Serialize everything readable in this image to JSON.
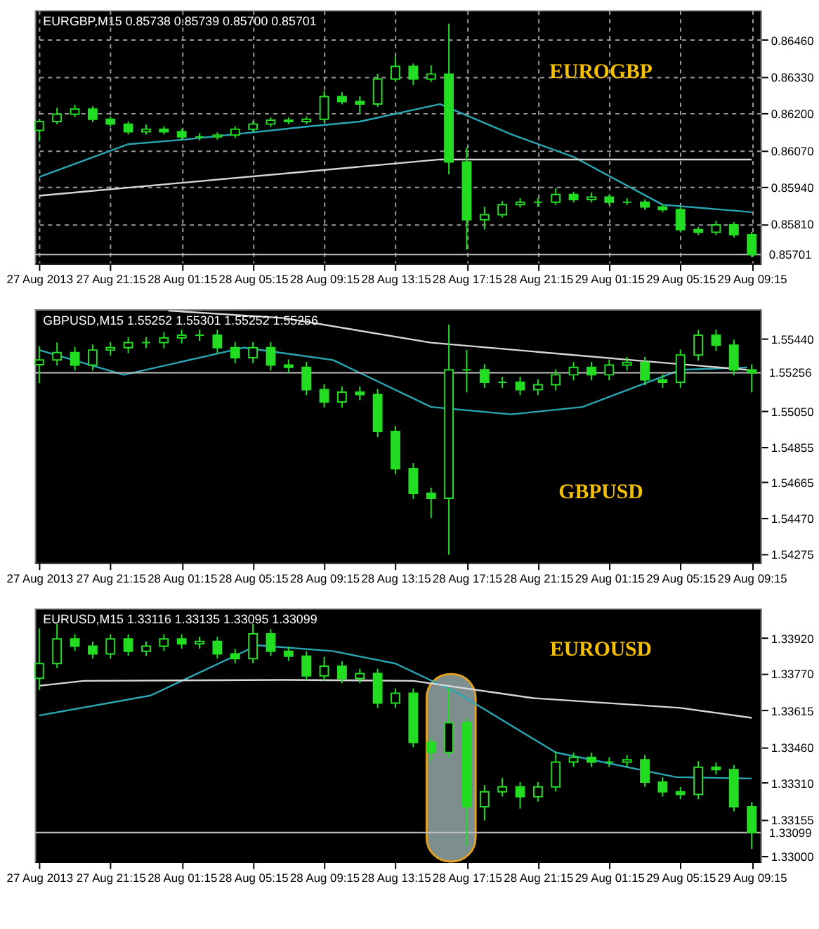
{
  "chart_data": [
    {
      "type": "candlestick",
      "title": "EURGBP,M15 0.85738 0.85739 0.85700 0.85701",
      "annotations": [
        "EUROGBP"
      ],
      "color": "#22dd22",
      "grid": true,
      "x": [
        "2013-08-27T17:15",
        "2013-08-27T18:15",
        "2013-08-27T19:15",
        "2013-08-27T20:15",
        "2013-08-27T21:15",
        "2013-08-27T22:15",
        "2013-08-27T23:15",
        "2013-08-28T00:15",
        "2013-08-28T01:15",
        "2013-08-28T02:15",
        "2013-08-28T03:15",
        "2013-08-28T04:15",
        "2013-08-28T05:15",
        "2013-08-28T06:15",
        "2013-08-28T07:15",
        "2013-08-28T08:15",
        "2013-08-28T09:15",
        "2013-08-28T10:15",
        "2013-08-28T11:15",
        "2013-08-28T12:15",
        "2013-08-28T13:15",
        "2013-08-28T14:15",
        "2013-08-28T15:15",
        "2013-08-28T16:15",
        "2013-08-28T17:15",
        "2013-08-28T18:15",
        "2013-08-28T19:15",
        "2013-08-28T20:15",
        "2013-08-28T21:15",
        "2013-08-28T22:15",
        "2013-08-28T23:15",
        "2013-08-29T00:15",
        "2013-08-29T01:15",
        "2013-08-29T02:15",
        "2013-08-29T03:15",
        "2013-08-29T04:15",
        "2013-08-29T05:15",
        "2013-08-29T06:15",
        "2013-08-29T07:15",
        "2013-08-29T08:15",
        "2013-08-29T09:15"
      ],
      "ohlc": [
        [
          0.8614,
          0.86181,
          0.861,
          0.86171
        ],
        [
          0.86171,
          0.8622,
          0.86161,
          0.86197
        ],
        [
          0.86197,
          0.8623,
          0.86187,
          0.86215
        ],
        [
          0.86215,
          0.86225,
          0.86169,
          0.86179
        ],
        [
          0.86179,
          0.86189,
          0.86152,
          0.86162
        ],
        [
          0.86162,
          0.86172,
          0.86125,
          0.86135
        ],
        [
          0.86135,
          0.8616,
          0.86125,
          0.86144
        ],
        [
          0.86144,
          0.86154,
          0.86125,
          0.86135
        ],
        [
          0.86135,
          0.86145,
          0.86107,
          0.86117
        ],
        [
          0.86117,
          0.8613,
          0.86105,
          0.86117
        ],
        [
          0.86117,
          0.86133,
          0.86107,
          0.86123
        ],
        [
          0.86123,
          0.86154,
          0.86113,
          0.86144
        ],
        [
          0.86144,
          0.86172,
          0.86134,
          0.86162
        ],
        [
          0.86162,
          0.86186,
          0.86152,
          0.86176
        ],
        [
          0.86176,
          0.86186,
          0.86161,
          0.86171
        ],
        [
          0.86171,
          0.86189,
          0.86161,
          0.86179
        ],
        [
          0.86179,
          0.8628,
          0.86169,
          0.86259
        ],
        [
          0.86259,
          0.86275,
          0.86232,
          0.86242
        ],
        [
          0.86242,
          0.8626,
          0.862,
          0.86233
        ],
        [
          0.86233,
          0.8634,
          0.86223,
          0.86321
        ],
        [
          0.86321,
          0.864,
          0.86311,
          0.86366
        ],
        [
          0.86366,
          0.86376,
          0.863,
          0.86321
        ],
        [
          0.86321,
          0.8637,
          0.86311,
          0.86339
        ],
        [
          0.86339,
          0.86517,
          0.85984,
          0.86028
        ],
        [
          0.86028,
          0.8608,
          0.85718,
          0.85824
        ],
        [
          0.85824,
          0.8587,
          0.8579,
          0.85842
        ],
        [
          0.85842,
          0.8589,
          0.85832,
          0.85877
        ],
        [
          0.85877,
          0.859,
          0.85867,
          0.85886
        ],
        [
          0.85886,
          0.859,
          0.8587,
          0.85886
        ],
        [
          0.85886,
          0.85935,
          0.85876,
          0.85913
        ],
        [
          0.85913,
          0.85923,
          0.85885,
          0.85895
        ],
        [
          0.85895,
          0.8592,
          0.85885,
          0.85904
        ],
        [
          0.85904,
          0.85914,
          0.85876,
          0.85886
        ],
        [
          0.85886,
          0.859,
          0.85876,
          0.85886
        ],
        [
          0.85886,
          0.85896,
          0.85859,
          0.85869
        ],
        [
          0.85869,
          0.85879,
          0.8585,
          0.8586
        ],
        [
          0.8586,
          0.8587,
          0.85779,
          0.85789
        ],
        [
          0.85789,
          0.85799,
          0.8577,
          0.8578
        ],
        [
          0.8578,
          0.8582,
          0.8577,
          0.85806
        ],
        [
          0.85806,
          0.85816,
          0.85761,
          0.85771
        ],
        [
          0.85771,
          0.85781,
          0.85691,
          0.85701
        ]
      ],
      "series": [
        {
          "type": "line",
          "color": "#2aa7b5",
          "x": [
            "2013-08-27T17:15",
            "2013-08-27T22:15",
            "2013-08-28T01:30",
            "2013-08-28T08:15",
            "2013-08-28T11:15",
            "2013-08-28T15:45",
            "2013-08-28T19:45",
            "2013-08-28T23:15",
            "2013-08-29T04:15",
            "2013-08-29T09:15"
          ],
          "values": [
            0.85975,
            0.86091,
            0.86108,
            0.86153,
            0.86171,
            0.86233,
            0.86126,
            0.86046,
            0.85877,
            0.85851
          ]
        },
        {
          "type": "line",
          "color": "#d8d8d8",
          "x": [
            "2013-08-27T17:15",
            "2013-08-28T15:45",
            "2013-08-29T09:15"
          ],
          "values": [
            0.85909,
            0.86037,
            0.86037
          ]
        }
      ],
      "xlim": [
        "2013-08-27T17:00",
        "2013-08-29T09:45"
      ],
      "xticks": [
        {
          "value": "2013-08-27T17:15",
          "label": "27 Aug 2013"
        },
        {
          "value": "2013-08-27T21:15",
          "label": "27 Aug 21:15"
        },
        {
          "value": "2013-08-28T01:15",
          "label": "28 Aug 01:15"
        },
        {
          "value": "2013-08-28T05:15",
          "label": "28 Aug 05:15"
        },
        {
          "value": "2013-08-28T09:15",
          "label": "28 Aug 09:15"
        },
        {
          "value": "2013-08-28T13:15",
          "label": "28 Aug 13:15"
        },
        {
          "value": "2013-08-28T17:15",
          "label": "28 Aug 17:15"
        },
        {
          "value": "2013-08-28T21:15",
          "label": "28 Aug 21:15"
        },
        {
          "value": "2013-08-29T01:15",
          "label": "29 Aug 01:15"
        },
        {
          "value": "2013-08-29T05:15",
          "label": "29 Aug 05:15"
        },
        {
          "value": "2013-08-29T09:15",
          "label": "29 Aug 09:15"
        }
      ],
      "ylim": [
        0.8567,
        0.86565
      ],
      "yticks": [
        {
          "value": 0.8646,
          "label": "0.86460"
        },
        {
          "value": 0.8633,
          "label": "0.86330"
        },
        {
          "value": 0.862,
          "label": "0.86200"
        },
        {
          "value": 0.8607,
          "label": "0.86070"
        },
        {
          "value": 0.8594,
          "label": "0.85940"
        },
        {
          "value": 0.8581,
          "label": "0.85810"
        }
      ],
      "ref_lines": [
        {
          "axis": "y",
          "value": 0.85701,
          "label": "0.85701",
          "color": "#c0c0c0"
        }
      ]
    },
    {
      "type": "candlestick",
      "title": "GBPUSD,M15 1.55252 1.55301 1.55252 1.55256",
      "annotations": [
        "GBPUSD"
      ],
      "color": "#22dd22",
      "grid": false,
      "x": [
        "2013-08-27T17:15",
        "2013-08-27T18:15",
        "2013-08-27T19:15",
        "2013-08-27T20:15",
        "2013-08-27T21:15",
        "2013-08-27T22:15",
        "2013-08-27T23:15",
        "2013-08-28T00:15",
        "2013-08-28T01:15",
        "2013-08-28T02:15",
        "2013-08-28T03:15",
        "2013-08-28T04:15",
        "2013-08-28T05:15",
        "2013-08-28T06:15",
        "2013-08-28T07:15",
        "2013-08-28T08:15",
        "2013-08-28T09:15",
        "2013-08-28T10:15",
        "2013-08-28T11:15",
        "2013-08-28T12:15",
        "2013-08-28T13:15",
        "2013-08-28T14:15",
        "2013-08-28T15:15",
        "2013-08-28T16:15",
        "2013-08-28T17:15",
        "2013-08-28T18:15",
        "2013-08-28T19:15",
        "2013-08-28T20:15",
        "2013-08-28T21:15",
        "2013-08-28T22:15",
        "2013-08-28T23:15",
        "2013-08-29T00:15",
        "2013-08-29T01:15",
        "2013-08-29T02:15",
        "2013-08-29T03:15",
        "2013-08-29T04:15",
        "2013-08-29T05:15",
        "2013-08-29T06:15",
        "2013-08-29T07:15",
        "2013-08-29T08:15",
        "2013-08-29T09:15"
      ],
      "ohlc": [
        [
          1.553,
          1.554,
          1.552,
          1.55325
        ],
        [
          1.55325,
          1.5542,
          1.55295,
          1.55365
        ],
        [
          1.55365,
          1.55395,
          1.55268,
          1.55298
        ],
        [
          1.55298,
          1.55409,
          1.55268,
          1.55379
        ],
        [
          1.55379,
          1.55422,
          1.55349,
          1.55392
        ],
        [
          1.55392,
          1.55449,
          1.55362,
          1.55419
        ],
        [
          1.55419,
          1.55449,
          1.55389,
          1.55419
        ],
        [
          1.55419,
          1.55475,
          1.55389,
          1.55445
        ],
        [
          1.55445,
          1.55489,
          1.55415,
          1.55459
        ],
        [
          1.55459,
          1.55489,
          1.55429,
          1.55459
        ],
        [
          1.55459,
          1.55489,
          1.55362,
          1.55392
        ],
        [
          1.55392,
          1.55422,
          1.55308,
          1.55338
        ],
        [
          1.55338,
          1.55422,
          1.55308,
          1.55392
        ],
        [
          1.55392,
          1.55422,
          1.55268,
          1.55298
        ],
        [
          1.55298,
          1.55328,
          1.55255,
          1.55285
        ],
        [
          1.55285,
          1.55315,
          1.55135,
          1.55165
        ],
        [
          1.55165,
          1.55195,
          1.55068,
          1.55098
        ],
        [
          1.55098,
          1.55181,
          1.55068,
          1.55151
        ],
        [
          1.55151,
          1.55181,
          1.55108,
          1.55138
        ],
        [
          1.55138,
          1.55168,
          1.54908,
          1.54938
        ],
        [
          1.54938,
          1.54968,
          1.54707,
          1.54737
        ],
        [
          1.54737,
          1.54767,
          1.54574,
          1.54604
        ],
        [
          1.54604,
          1.54634,
          1.5447,
          1.54577
        ],
        [
          1.54577,
          1.55517,
          1.5427,
          1.55272
        ],
        [
          1.55272,
          1.5538,
          1.5515,
          1.55272
        ],
        [
          1.55272,
          1.55302,
          1.55175,
          1.55205
        ],
        [
          1.55205,
          1.55235,
          1.55175,
          1.55205
        ],
        [
          1.55205,
          1.55235,
          1.55135,
          1.55165
        ],
        [
          1.55165,
          1.55221,
          1.55135,
          1.55191
        ],
        [
          1.55191,
          1.55275,
          1.55161,
          1.55245
        ],
        [
          1.55245,
          1.55315,
          1.55215,
          1.55285
        ],
        [
          1.55285,
          1.55315,
          1.55215,
          1.55245
        ],
        [
          1.55245,
          1.55328,
          1.55215,
          1.55298
        ],
        [
          1.55298,
          1.55342,
          1.55268,
          1.55312
        ],
        [
          1.55312,
          1.55342,
          1.55188,
          1.55218
        ],
        [
          1.55218,
          1.55248,
          1.55175,
          1.55205
        ],
        [
          1.55205,
          1.55382,
          1.55175,
          1.55352
        ],
        [
          1.55352,
          1.55489,
          1.55322,
          1.55459
        ],
        [
          1.55459,
          1.55489,
          1.55375,
          1.55405
        ],
        [
          1.55405,
          1.55435,
          1.55242,
          1.55272
        ],
        [
          1.55272,
          1.55302,
          1.5515,
          1.55256
        ]
      ],
      "series": [
        {
          "type": "line",
          "color": "#2aa7b5",
          "x": [
            "2013-08-27T17:15",
            "2013-08-27T22:00",
            "2013-08-28T04:45",
            "2013-08-28T09:45",
            "2013-08-28T15:15",
            "2013-08-28T19:45",
            "2013-08-28T23:45",
            "2013-08-29T05:15",
            "2013-08-29T09:00"
          ],
          "values": [
            1.55379,
            1.55245,
            1.55392,
            1.55325,
            1.55071,
            1.55031,
            1.55071,
            1.55272,
            1.55285
          ]
        },
        {
          "type": "line",
          "color": "#d8d8d8",
          "x": [
            "2013-08-28T00:30",
            "2013-08-28T07:00",
            "2013-08-28T15:15",
            "2013-08-29T02:30",
            "2013-08-29T09:00"
          ],
          "values": [
            1.55592,
            1.55552,
            1.55419,
            1.55325,
            1.55272
          ]
        }
      ],
      "xlim": [
        "2013-08-27T17:00",
        "2013-08-29T09:45"
      ],
      "xticks": [
        {
          "value": "2013-08-27T17:15",
          "label": "27 Aug 2013"
        },
        {
          "value": "2013-08-27T21:15",
          "label": "27 Aug 21:15"
        },
        {
          "value": "2013-08-28T01:15",
          "label": "28 Aug 01:15"
        },
        {
          "value": "2013-08-28T05:15",
          "label": "28 Aug 05:15"
        },
        {
          "value": "2013-08-28T09:15",
          "label": "28 Aug 09:15"
        },
        {
          "value": "2013-08-28T13:15",
          "label": "28 Aug 13:15"
        },
        {
          "value": "2013-08-28T17:15",
          "label": "28 Aug 17:15"
        },
        {
          "value": "2013-08-28T21:15",
          "label": "28 Aug 21:15"
        },
        {
          "value": "2013-08-29T01:15",
          "label": "29 Aug 01:15"
        },
        {
          "value": "2013-08-29T05:15",
          "label": "29 Aug 05:15"
        },
        {
          "value": "2013-08-29T09:15",
          "label": "29 Aug 09:15"
        }
      ],
      "ylim": [
        1.5423,
        1.556
      ],
      "yticks": [
        {
          "value": 1.5544,
          "label": "1.55440"
        },
        {
          "value": 1.5505,
          "label": "1.55050"
        },
        {
          "value": 1.54855,
          "label": "1.54855"
        },
        {
          "value": 1.54665,
          "label": "1.54665"
        },
        {
          "value": 1.5447,
          "label": "1.54470"
        },
        {
          "value": 1.54275,
          "label": "1.54275"
        }
      ],
      "ref_lines": [
        {
          "axis": "y",
          "value": 1.55256,
          "label": "1.55256",
          "color": "#c0c0c0"
        }
      ]
    },
    {
      "type": "candlestick",
      "title": "EURUSD,M15 1.33116 1.33135 1.33095 1.33099",
      "annotations": [
        "EUROUSD"
      ],
      "color": "#22dd22",
      "grid": false,
      "x": [
        "2013-08-27T17:15",
        "2013-08-27T18:15",
        "2013-08-27T19:15",
        "2013-08-27T20:15",
        "2013-08-27T21:15",
        "2013-08-27T22:15",
        "2013-08-27T23:15",
        "2013-08-28T00:15",
        "2013-08-28T01:15",
        "2013-08-28T02:15",
        "2013-08-28T03:15",
        "2013-08-28T04:15",
        "2013-08-28T05:15",
        "2013-08-28T06:15",
        "2013-08-28T07:15",
        "2013-08-28T08:15",
        "2013-08-28T09:15",
        "2013-08-28T10:15",
        "2013-08-28T11:15",
        "2013-08-28T12:15",
        "2013-08-28T13:15",
        "2013-08-28T14:15",
        "2013-08-28T15:15",
        "2013-08-28T16:15",
        "2013-08-28T17:15",
        "2013-08-28T18:15",
        "2013-08-28T19:15",
        "2013-08-28T20:15",
        "2013-08-28T21:15",
        "2013-08-28T22:15",
        "2013-08-28T23:15",
        "2013-08-29T00:15",
        "2013-08-29T01:15",
        "2013-08-29T02:15",
        "2013-08-29T03:15",
        "2013-08-29T04:15",
        "2013-08-29T05:15",
        "2013-08-29T06:15",
        "2013-08-29T07:15",
        "2013-08-29T08:15",
        "2013-08-29T09:15"
      ],
      "ohlc": [
        [
          1.3375,
          1.3396,
          1.337,
          1.33812
        ],
        [
          1.33812,
          1.3398,
          1.33792,
          1.33916
        ],
        [
          1.33916,
          1.33936,
          1.33865,
          1.33885
        ],
        [
          1.33885,
          1.33905,
          1.33833,
          1.33853
        ],
        [
          1.33853,
          1.33936,
          1.33833,
          1.33916
        ],
        [
          1.33916,
          1.33936,
          1.33844,
          1.33864
        ],
        [
          1.33864,
          1.33905,
          1.33844,
          1.33885
        ],
        [
          1.33885,
          1.33936,
          1.33865,
          1.33916
        ],
        [
          1.33916,
          1.33936,
          1.33875,
          1.33895
        ],
        [
          1.33895,
          1.33925,
          1.33875,
          1.33905
        ],
        [
          1.33905,
          1.33925,
          1.33833,
          1.33853
        ],
        [
          1.33853,
          1.33873,
          1.33813,
          1.33833
        ],
        [
          1.33833,
          1.3398,
          1.33813,
          1.33937
        ],
        [
          1.33937,
          1.33957,
          1.33844,
          1.33864
        ],
        [
          1.33864,
          1.33884,
          1.33823,
          1.33843
        ],
        [
          1.33843,
          1.33863,
          1.3374,
          1.3376
        ],
        [
          1.3376,
          1.3384,
          1.3374,
          1.33801
        ],
        [
          1.33801,
          1.33821,
          1.33729,
          1.33749
        ],
        [
          1.33749,
          1.3379,
          1.33729,
          1.3377
        ],
        [
          1.3377,
          1.3379,
          1.33625,
          1.33645
        ],
        [
          1.33645,
          1.33707,
          1.33625,
          1.33687
        ],
        [
          1.33687,
          1.33707,
          1.33459,
          1.33479
        ],
        [
          1.33479,
          1.33499,
          1.334,
          1.33437
        ],
        [
          1.33437,
          1.33708,
          1.33417,
          1.33562
        ],
        [
          1.33562,
          1.33582,
          1.33042,
          1.33208
        ],
        [
          1.33208,
          1.333,
          1.3315,
          1.33271
        ],
        [
          1.33271,
          1.3333,
          1.33251,
          1.33292
        ],
        [
          1.33292,
          1.33312,
          1.332,
          1.3325
        ],
        [
          1.3325,
          1.33312,
          1.3323,
          1.33292
        ],
        [
          1.33292,
          1.3344,
          1.33272,
          1.33396
        ],
        [
          1.33396,
          1.33436,
          1.33376,
          1.33416
        ],
        [
          1.33416,
          1.33436,
          1.33376,
          1.33396
        ],
        [
          1.33396,
          1.33416,
          1.33376,
          1.33396
        ],
        [
          1.33396,
          1.33426,
          1.33376,
          1.33406
        ],
        [
          1.33406,
          1.33426,
          1.33292,
          1.33312
        ],
        [
          1.33312,
          1.33332,
          1.33251,
          1.33271
        ],
        [
          1.33271,
          1.33291,
          1.3324,
          1.3326
        ],
        [
          1.3326,
          1.334,
          1.3324,
          1.33375
        ],
        [
          1.33375,
          1.33395,
          1.33344,
          1.33364
        ],
        [
          1.33364,
          1.33384,
          1.33188,
          1.33208
        ],
        [
          1.33208,
          1.33228,
          1.3303,
          1.33099
        ]
      ],
      "series": [
        {
          "type": "line",
          "color": "#2aa7b5",
          "x": [
            "2013-08-27T17:15",
            "2013-08-27T23:30",
            "2013-08-28T05:30",
            "2013-08-28T09:45",
            "2013-08-28T13:15",
            "2013-08-28T16:45",
            "2013-08-28T22:15",
            "2013-08-29T05:00",
            "2013-08-29T09:15"
          ],
          "values": [
            1.33593,
            1.33677,
            1.33889,
            1.33864,
            1.33812,
            1.33687,
            1.33437,
            1.33333,
            1.33327
          ]
        },
        {
          "type": "line",
          "color": "#d8d8d8",
          "x": [
            "2013-08-27T17:15",
            "2013-08-27T19:45",
            "2013-08-28T07:00",
            "2013-08-28T14:15",
            "2013-08-28T21:00",
            "2013-08-29T05:15",
            "2013-08-29T09:15"
          ],
          "values": [
            1.33718,
            1.33739,
            1.33743,
            1.33739,
            1.33666,
            1.33625,
            1.33583
          ]
        }
      ],
      "xlim": [
        "2013-08-27T17:00",
        "2013-08-29T09:45"
      ],
      "xticks": [
        {
          "value": "2013-08-27T17:15",
          "label": "27 Aug 2013"
        },
        {
          "value": "2013-08-27T21:15",
          "label": "27 Aug 21:15"
        },
        {
          "value": "2013-08-28T01:15",
          "label": "28 Aug 01:15"
        },
        {
          "value": "2013-08-28T05:15",
          "label": "28 Aug 05:15"
        },
        {
          "value": "2013-08-28T09:15",
          "label": "28 Aug 09:15"
        },
        {
          "value": "2013-08-28T13:15",
          "label": "28 Aug 13:15"
        },
        {
          "value": "2013-08-28T17:15",
          "label": "28 Aug 17:15"
        },
        {
          "value": "2013-08-28T21:15",
          "label": "28 Aug 21:15"
        },
        {
          "value": "2013-08-29T01:15",
          "label": "29 Aug 01:15"
        },
        {
          "value": "2013-08-29T05:15",
          "label": "29 Aug 05:15"
        },
        {
          "value": "2013-08-29T09:15",
          "label": "29 Aug 09:15"
        }
      ],
      "ylim": [
        1.32977,
        1.34045
      ],
      "yticks": [
        {
          "value": 1.3392,
          "label": "1.33920"
        },
        {
          "value": 1.3377,
          "label": "1.33770"
        },
        {
          "value": 1.33615,
          "label": "1.33615"
        },
        {
          "value": 1.3346,
          "label": "1.33460"
        },
        {
          "value": 1.3331,
          "label": "1.33310"
        },
        {
          "value": 1.33155,
          "label": "1.33155"
        },
        {
          "value": 1.33,
          "label": "1.33000"
        }
      ],
      "ref_lines": [
        {
          "axis": "y",
          "value": 1.33099,
          "label": "1.33099",
          "color": "#c0c0c0"
        }
      ],
      "bands": [
        {
          "axis": "x",
          "from": "2013-08-28T15:00",
          "to": "2013-08-28T17:45",
          "color": "#a8bcbc"
        }
      ]
    }
  ]
}
